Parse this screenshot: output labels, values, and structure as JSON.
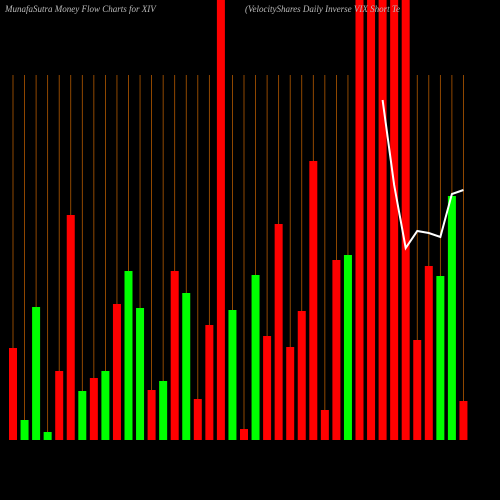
{
  "chart_data": {
    "type": "bar",
    "title": "MunafaSutra  Money Flow  Charts for XIV",
    "subtitle": "(VelocityShares Daily Inverse  VIX  Short Te",
    "values": [
      92,
      20,
      133,
      8,
      69,
      225,
      49,
      62,
      69,
      136,
      169,
      132,
      50,
      59,
      169,
      147,
      41,
      115,
      460,
      130,
      11,
      165,
      104,
      216,
      93,
      129,
      279,
      30,
      180,
      185,
      460,
      460,
      460,
      460,
      460,
      100,
      174,
      164,
      244,
      39
    ],
    "colors": [
      "#ff0000",
      "#00ff00",
      "#00ff00",
      "#00ff00",
      "#ff0000",
      "#ff0000",
      "#00ff00",
      "#ff0000",
      "#00ff00",
      "#ff0000",
      "#00ff00",
      "#00ff00",
      "#ff0000",
      "#00ff00",
      "#ff0000",
      "#00ff00",
      "#ff0000",
      "#ff0000",
      "#ff0000",
      "#00ff00",
      "#ff0000",
      "#00ff00",
      "#ff0000",
      "#ff0000",
      "#ff0000",
      "#ff0000",
      "#ff0000",
      "#ff0000",
      "#ff0000",
      "#00ff00",
      "#ff0000",
      "#ff0000",
      "#ff0000",
      "#ff0000",
      "#ff0000",
      "#ff0000",
      "#ff0000",
      "#00ff00",
      "#00ff00",
      "#ff0000"
    ],
    "line": {
      "color": "#ffffff",
      "values": [
        null,
        null,
        null,
        null,
        null,
        null,
        null,
        null,
        null,
        null,
        null,
        null,
        null,
        null,
        null,
        null,
        null,
        null,
        null,
        null,
        null,
        null,
        null,
        null,
        null,
        null,
        null,
        null,
        null,
        null,
        null,
        null,
        340,
        255,
        192,
        209,
        207,
        203,
        246,
        250
      ]
    },
    "ylim": [
      0,
      440
    ],
    "grid_color": "#b35900"
  }
}
